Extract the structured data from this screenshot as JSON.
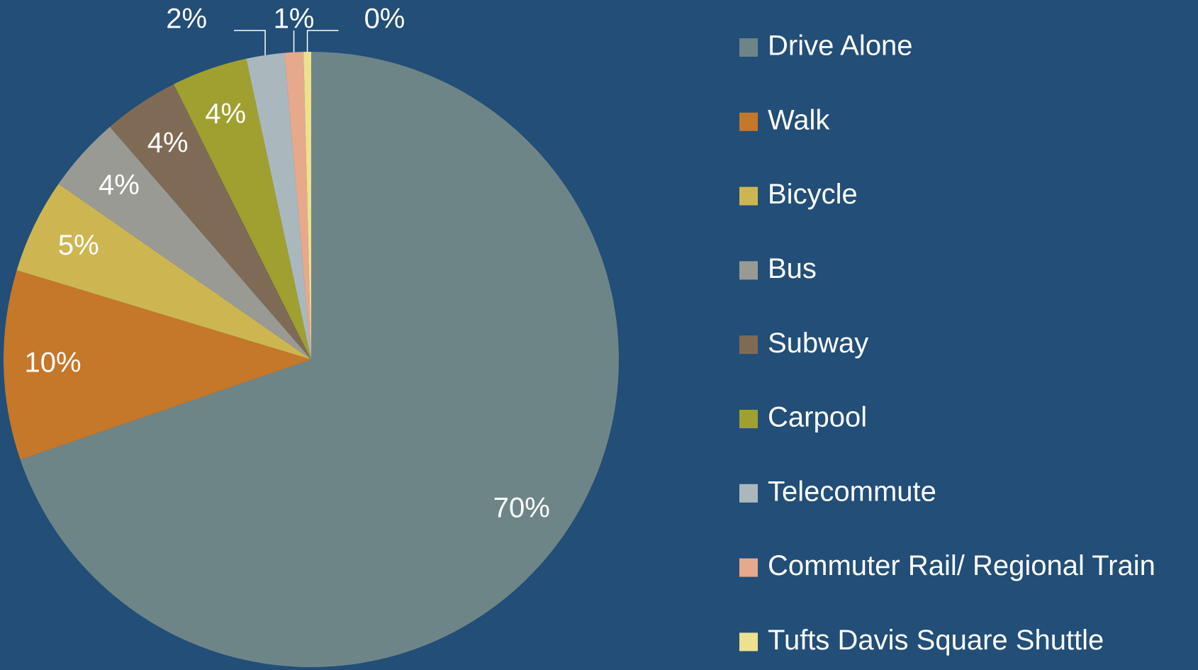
{
  "chart_data": {
    "type": "pie",
    "categories": [
      "Drive Alone",
      "Walk",
      "Bicycle",
      "Bus",
      "Subway",
      "Carpool",
      "Telecommute",
      "Commuter Rail/ Regional Train",
      "Tufts Davis Square Shuttle"
    ],
    "values": [
      70,
      10,
      5,
      4,
      4,
      4,
      2,
      1,
      0.4
    ],
    "value_labels": [
      "70%",
      "10%",
      "5%",
      "4%",
      "4%",
      "4%",
      "2%",
      "1%",
      "0%"
    ],
    "colors": [
      "#6e8588",
      "#c5772a",
      "#cdb652",
      "#9a9a94",
      "#7f6b55",
      "#a0a030",
      "#aab8be",
      "#e6a98c",
      "#ede08f"
    ],
    "legend": "right"
  }
}
